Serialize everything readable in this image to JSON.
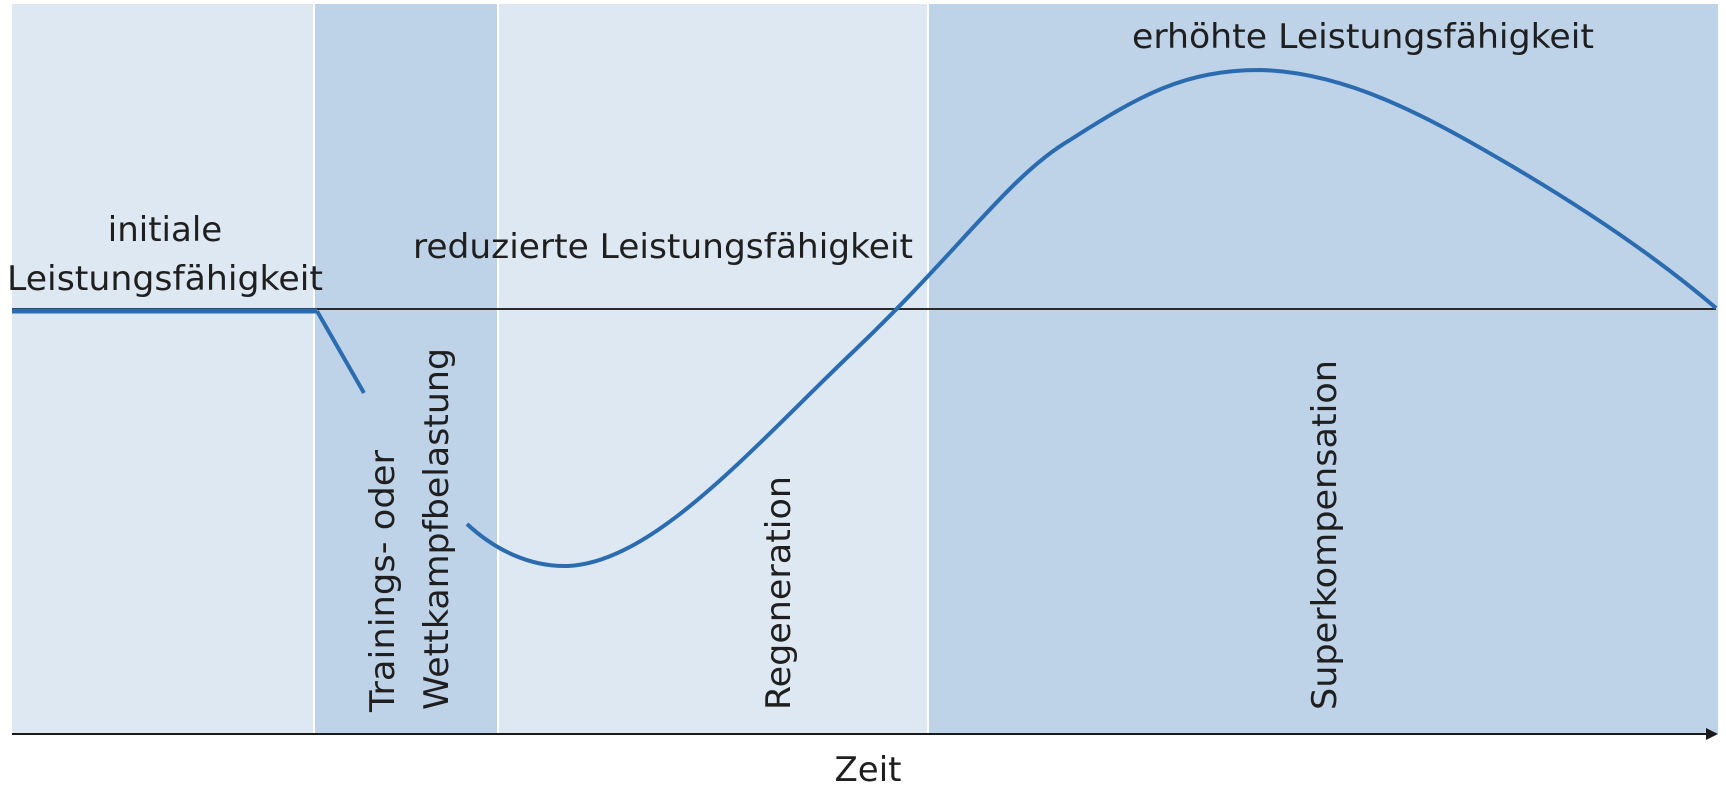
{
  "colors": {
    "band_light": "#dde8f3",
    "band_dark": "#bed2e8",
    "band_divider": "#ffffff",
    "curve": "#2b6cb0",
    "baseline": "#2a2a2a",
    "axis": "#1a1a1a"
  },
  "phases": [
    {
      "id": "initial",
      "label": "",
      "shade": "light"
    },
    {
      "id": "load",
      "label_lines": [
        "Trainings- oder",
        "Wettkampfbelastung"
      ],
      "shade": "dark"
    },
    {
      "id": "regeneration",
      "label": "Regeneration",
      "shade": "light"
    },
    {
      "id": "supercompensation",
      "label": "Superkompensation",
      "shade": "dark"
    }
  ],
  "annotations": {
    "initial_line1": "initiale",
    "initial_line2": "Leistungsfähigkeit",
    "reduced": "reduzierte Leistungsfähigkeit",
    "increased": "erhöhte Leistungsfähigkeit"
  },
  "axis": {
    "x_label": "Zeit"
  }
}
